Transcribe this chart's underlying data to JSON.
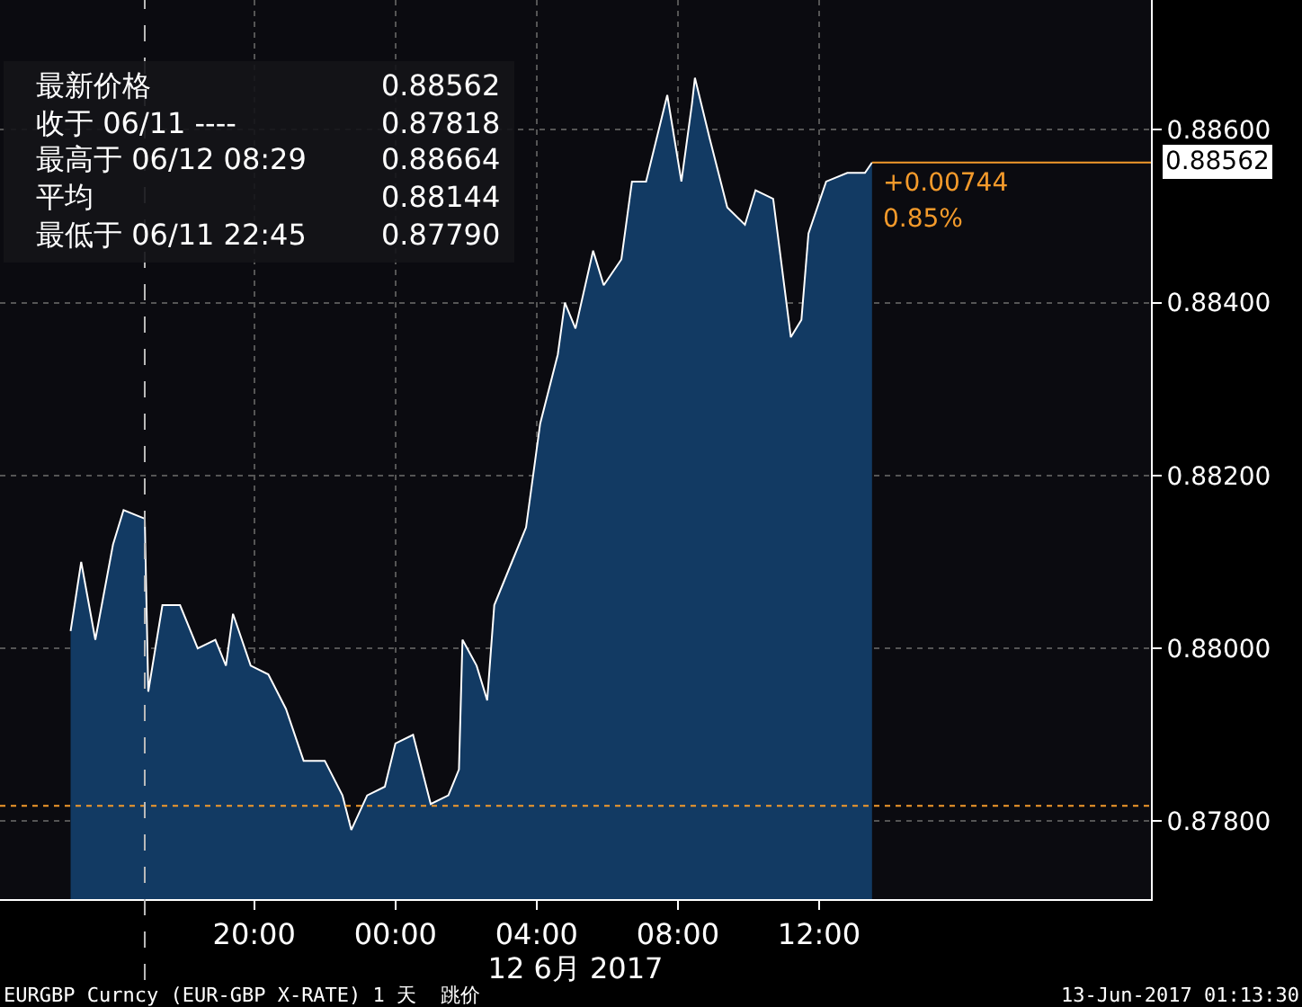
{
  "chart_data": {
    "type": "area",
    "xlabel": "12 6月 2017",
    "x": [
      "2017-06-11T14:48",
      "2017-06-11T15:06",
      "2017-06-11T15:30",
      "2017-06-11T16:00",
      "2017-06-11T16:18",
      "2017-06-11T16:54",
      "2017-06-11T17:00",
      "2017-06-11T17:24",
      "2017-06-11T17:54",
      "2017-06-11T18:24",
      "2017-06-11T18:54",
      "2017-06-11T19:12",
      "2017-06-11T19:24",
      "2017-06-11T19:54",
      "2017-06-11T20:24",
      "2017-06-11T20:54",
      "2017-06-11T21:24",
      "2017-06-11T22:00",
      "2017-06-11T22:30",
      "2017-06-11T22:45",
      "2017-06-11T23:12",
      "2017-06-11T23:42",
      "2017-06-12T00:00",
      "2017-06-12T00:30",
      "2017-06-12T01:00",
      "2017-06-12T01:30",
      "2017-06-12T01:48",
      "2017-06-12T01:54",
      "2017-06-12T02:18",
      "2017-06-12T02:36",
      "2017-06-12T02:48",
      "2017-06-12T03:18",
      "2017-06-12T03:42",
      "2017-06-12T04:06",
      "2017-06-12T04:36",
      "2017-06-12T04:48",
      "2017-06-12T05:06",
      "2017-06-12T05:36",
      "2017-06-12T05:54",
      "2017-06-12T06:24",
      "2017-06-12T06:42",
      "2017-06-12T07:06",
      "2017-06-12T07:42",
      "2017-06-12T08:06",
      "2017-06-12T08:24",
      "2017-06-12T08:29",
      "2017-06-12T08:54",
      "2017-06-12T09:24",
      "2017-06-12T09:54",
      "2017-06-12T10:12",
      "2017-06-12T10:42",
      "2017-06-12T11:12",
      "2017-06-12T11:30",
      "2017-06-12T11:42",
      "2017-06-12T12:12",
      "2017-06-12T12:48",
      "2017-06-12T13:18",
      "2017-06-12T13:30"
    ],
    "series": [
      {
        "color": "#123a63",
        "values": [
          0.8802,
          0.881,
          0.8801,
          0.8812,
          0.8816,
          0.8815,
          0.8795,
          0.8805,
          0.8805,
          0.88,
          0.8801,
          0.8798,
          0.8804,
          0.8798,
          0.8797,
          0.8793,
          0.8787,
          0.8787,
          0.8783,
          0.8779,
          0.8783,
          0.8784,
          0.8789,
          0.879,
          0.8782,
          0.8783,
          0.8786,
          0.8801,
          0.8798,
          0.8794,
          0.8805,
          0.881,
          0.8814,
          0.8826,
          0.8834,
          0.884,
          0.8837,
          0.8846,
          0.8842,
          0.8845,
          0.8854,
          0.8854,
          0.8864,
          0.8854,
          0.8863,
          0.8866,
          0.8859,
          0.8851,
          0.8849,
          0.8853,
          0.8852,
          0.8836,
          0.8838,
          0.8848,
          0.8854,
          0.8855,
          0.8855,
          0.88562
        ]
      }
    ],
    "xlim": [
      "2017-06-11T12:48",
      "2017-06-12T21:24"
    ],
    "xticks": [
      {
        "value": "2017-06-11T20:00",
        "label": "20:00"
      },
      {
        "value": "2017-06-12T00:00",
        "label": "00:00"
      },
      {
        "value": "2017-06-12T04:00",
        "label": "04:00"
      },
      {
        "value": "2017-06-12T08:00",
        "label": "08:00"
      },
      {
        "value": "2017-06-12T12:00",
        "label": "12:00"
      }
    ],
    "ylim": [
      0.8771,
      0.8875
    ],
    "yticks": [
      {
        "value": 0.878,
        "label": "0.87800"
      },
      {
        "value": 0.88,
        "label": "0.88000"
      },
      {
        "value": 0.882,
        "label": "0.88200"
      },
      {
        "value": 0.884,
        "label": "0.88400"
      },
      {
        "value": 0.886,
        "label": "0.88600"
      }
    ],
    "grid": true,
    "ref_lines": [
      {
        "axis": "y",
        "value": 0.87818,
        "color": "#f39a2b",
        "line_style": "dotted"
      },
      {
        "axis": "y",
        "value": 0.88562,
        "label": "0.88562",
        "color": "#f39a2b",
        "line_style": "solid"
      },
      {
        "axis": "x",
        "value": "2017-06-11T16:54",
        "color": "#bbbbbb",
        "line_style": "dashed"
      }
    ],
    "annotations": [
      {
        "text": "+0.00744",
        "x": "2017-06-12T13:30",
        "y": 0.88562
      },
      {
        "text": "0.85%",
        "x": "2017-06-12T13:30",
        "y": 0.88562
      },
      "最新价格",
      "0.88562",
      "收于 06/11 ----",
      "0.87818",
      "最高于 06/12 08:29",
      "0.88664",
      "平均",
      "0.88144",
      "最低于 06/11 22:45",
      "0.87790",
      "EURGBP Curncy (EUR-GBP X-RATE) 1 天  跳价",
      "13-Jun-2017 01:13:30"
    ]
  }
}
